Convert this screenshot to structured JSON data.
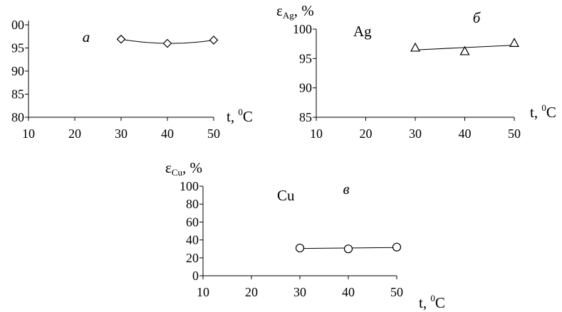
{
  "chart_data": [
    {
      "type": "scatter",
      "panel_label": "а",
      "ylabel": "",
      "xlabel": "t, ⁰C",
      "x": [
        30,
        40,
        50
      ],
      "values": [
        96.9,
        96.0,
        96.7
      ],
      "marker": "diamond",
      "trendline": "polynomial",
      "xlim": [
        10,
        50
      ],
      "ylim": [
        80,
        100
      ],
      "xticks": [
        "10",
        "20",
        "30",
        "40",
        "50"
      ],
      "yticks": [
        "80",
        "85",
        "90",
        "95",
        "00"
      ]
    },
    {
      "type": "scatter",
      "panel_label": "б",
      "series_label": "Ag",
      "ylabel": "εAg, %",
      "xlabel": "t, ⁰C",
      "x": [
        30,
        40,
        50
      ],
      "values": [
        96.8,
        96.2,
        97.6
      ],
      "marker": "triangle",
      "trendline": "linear",
      "xlim": [
        10,
        50
      ],
      "ylim": [
        85,
        100
      ],
      "xticks": [
        "10",
        "20",
        "30",
        "40",
        "50"
      ],
      "yticks": [
        "85",
        "90",
        "95",
        "100"
      ]
    },
    {
      "type": "scatter",
      "panel_label": "в",
      "series_label": "Cu",
      "ylabel": "εCu, %",
      "xlabel": "t, ⁰C",
      "x": [
        30,
        40,
        50
      ],
      "values": [
        31,
        30,
        32
      ],
      "marker": "circle",
      "trendline": "linear",
      "xlim": [
        10,
        50
      ],
      "ylim": [
        0,
        100
      ],
      "xticks": [
        "10",
        "20",
        "30",
        "40",
        "50"
      ],
      "yticks": [
        "0",
        "20",
        "40",
        "60",
        "80",
        "100"
      ]
    }
  ]
}
